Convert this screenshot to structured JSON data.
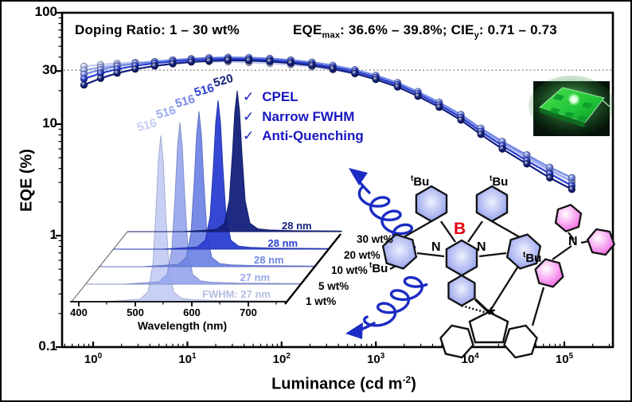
{
  "header": {
    "doping_text": "Doping Ratio: 1 – 30 wt%",
    "eqe_label": "EQE",
    "eqe_sub": "max",
    "eqe_mid": ": 36.6% – 39.8%; CIE",
    "cie_sub": "y",
    "cie_tail": ": 0.71 – 0.73"
  },
  "checklist": {
    "check_glyph": "✓",
    "items": [
      "CPEL",
      "Narrow FWHM",
      "Anti-Quenching"
    ],
    "color": "#1717bf"
  },
  "axes": {
    "y_title": "EQE (%)",
    "x_title_main": "Luminance (cd m",
    "x_title_sup": "-2",
    "x_title_close": ")",
    "y_ticks": [
      {
        "value": 100,
        "label": "100"
      },
      {
        "value": 30,
        "label": "30"
      },
      {
        "value": 10,
        "label": "10"
      },
      {
        "value": 1,
        "label": "1"
      },
      {
        "value": 0.1,
        "label": "0.1"
      }
    ],
    "x_tick_base": "10",
    "x_tick_exponents": [
      "0",
      "1",
      "2",
      "3",
      "4",
      "5"
    ]
  },
  "inset": {
    "x_title": "Wavelength (nm)",
    "x_ticks": [
      "400",
      "500",
      "600",
      "700"
    ]
  },
  "chart_data": [
    {
      "type": "line",
      "title": "EQE versus luminance for doped devices",
      "xlabel": "Luminance (cd m-2)",
      "ylabel": "EQE (%)",
      "xscale": "log",
      "yscale": "log",
      "xlim": [
        0.47,
        300000
      ],
      "ylim": [
        0.1,
        100
      ],
      "reference_line_y": 30.5,
      "x": [
        0.8,
        1.2,
        1.8,
        2.8,
        4.5,
        7,
        11,
        17,
        27,
        45,
        75,
        125,
        210,
        350,
        600,
        1000,
        1700,
        2800,
        4700,
        8000,
        13000,
        22000,
        40000,
        70000,
        120000
      ],
      "series": [
        {
          "name": "1 wt%",
          "color": "#c5cdf5",
          "eqe_max": 36.6,
          "values": [
            33.0,
            34.2,
            35.2,
            35.9,
            36.3,
            36.6,
            36.6,
            36.5,
            36.2,
            35.8,
            35.1,
            34.1,
            32.7,
            30.8,
            28.4,
            25.4,
            22.0,
            18.4,
            14.9,
            11.6,
            8.8,
            6.6,
            4.9,
            3.8,
            3.0
          ]
        },
        {
          "name": "5 wt%",
          "color": "#9aa9ee",
          "eqe_max": 37.6,
          "values": [
            30.5,
            32.4,
            33.9,
            35.1,
            36.0,
            36.7,
            37.2,
            37.5,
            37.6,
            37.3,
            36.7,
            35.7,
            34.2,
            32.2,
            29.6,
            26.4,
            22.8,
            19.0,
            15.3,
            11.9,
            9.0,
            6.8,
            5.1,
            3.9,
            3.1
          ]
        },
        {
          "name": "10 wt%",
          "color": "#7186e4",
          "eqe_max": 39.8,
          "values": [
            28.0,
            30.8,
            33.1,
            35.0,
            36.5,
            37.7,
            38.7,
            39.4,
            39.8,
            39.6,
            38.9,
            37.7,
            36.0,
            33.7,
            30.8,
            27.4,
            23.6,
            19.6,
            15.7,
            12.2,
            9.2,
            7.0,
            5.3,
            4.1,
            3.3
          ]
        },
        {
          "name": "20 wt%",
          "color": "#2a3ed2",
          "eqe_max": 38.6,
          "values": [
            25.5,
            28.6,
            31.2,
            33.4,
            35.2,
            36.6,
            37.7,
            38.4,
            38.6,
            38.4,
            37.7,
            36.5,
            34.8,
            32.5,
            29.7,
            26.3,
            22.6,
            18.7,
            14.9,
            11.5,
            8.6,
            6.4,
            4.7,
            3.6,
            2.8
          ]
        },
        {
          "name": "30 wt%",
          "color": "#13207b",
          "eqe_max": 37.4,
          "values": [
            22.5,
            25.8,
            28.7,
            31.2,
            33.3,
            34.9,
            36.1,
            36.9,
            37.4,
            37.2,
            36.5,
            35.3,
            33.6,
            31.3,
            28.5,
            25.2,
            21.6,
            17.8,
            14.2,
            10.9,
            8.1,
            6.0,
            4.4,
            3.3,
            2.6
          ]
        }
      ]
    },
    {
      "type": "area",
      "title": "Electroluminescence spectra (inset waterfall)",
      "xlabel": "Wavelength (nm)",
      "xlim": [
        400,
        760
      ],
      "series": [
        {
          "name": "1 wt%",
          "peak_nm": 516,
          "fwhm_label": "FWHM: 27 nm",
          "color": "#c5cdf5"
        },
        {
          "name": "5 wt%",
          "peak_nm": 516,
          "fwhm_label": "27 nm",
          "color": "#9aa9ee"
        },
        {
          "name": "10 wt%",
          "peak_nm": 516,
          "fwhm_label": "28 nm",
          "color": "#7186e4"
        },
        {
          "name": "20 wt%",
          "peak_nm": 516,
          "fwhm_label": "28 nm",
          "color": "#2a3ed2"
        },
        {
          "name": "30 wt%",
          "peak_nm": 520,
          "fwhm_label": "28 nm",
          "color": "#13207b"
        }
      ]
    }
  ],
  "molecule": {
    "tbu_sup": "t",
    "tbu": "Bu",
    "boron": "B",
    "nitrogen": "N",
    "amine_nitrogen": "N",
    "chiral_mark": "*",
    "boron_color": "#e60012"
  },
  "colors": {
    "reference_line": "#949494",
    "accent_blue": "#1b2cc4",
    "frame": "#000000"
  }
}
